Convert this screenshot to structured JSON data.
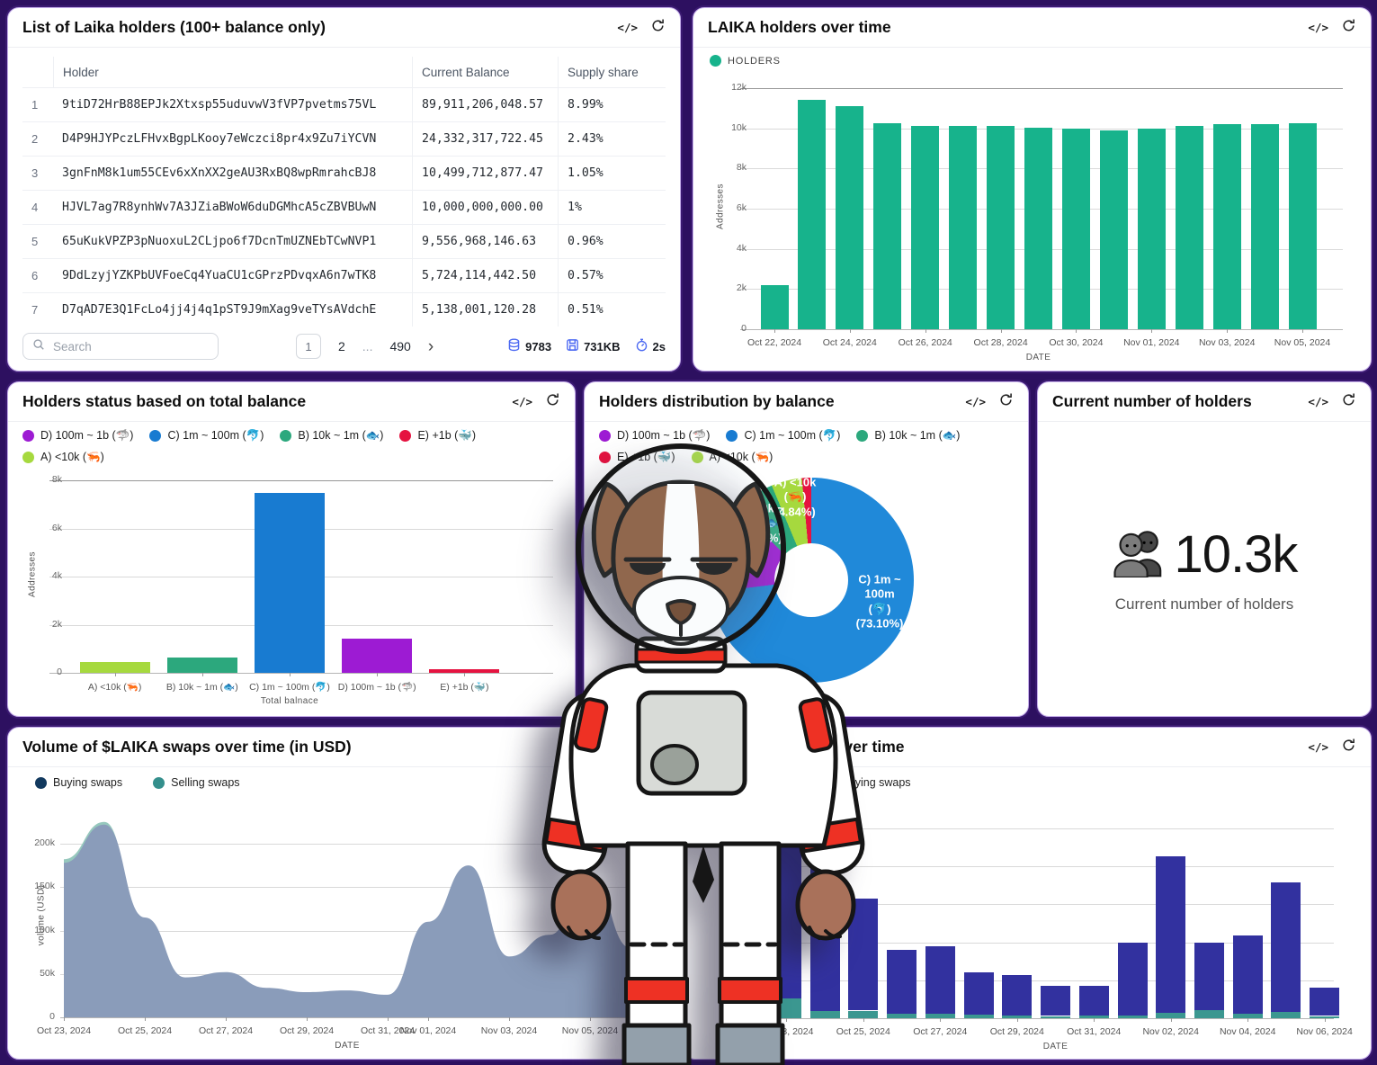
{
  "colors": {
    "background": "#2d1060",
    "panel": "#ffffff",
    "holders_green": "#17b38c",
    "blue": "#187bd1",
    "purple": "#9d1bd3",
    "red": "#e51340",
    "light_green": "#a6d93e",
    "teal_green": "#2ca87d",
    "buy_navy": "#12395e",
    "sell_teal": "#348f8c",
    "area_buy": "#8a9cba",
    "area_sell": "#96c8bd",
    "stack_indigo": "#32319f",
    "stack_teal": "#3b9790",
    "footer_icon_blue": "#4d6af2"
  },
  "icons": {
    "code": "</>"
  },
  "panels": {
    "holders_table": {
      "title": "List of Laika holders (100+ balance only)",
      "columns": [
        "",
        "Holder",
        "Current Balance",
        "Supply share"
      ],
      "rows": [
        [
          "1",
          "9tiD72HrB88EPJk2Xtxsp55uduvwV3fVP7pvetms75VL",
          "89,911,206,048.57",
          "8.99%"
        ],
        [
          "2",
          "D4P9HJYPczLFHvxBgpLKooy7eWczci8pr4x9Zu7iYCVN",
          "24,332,317,722.45",
          "2.43%"
        ],
        [
          "3",
          "3gnFnM8k1um55CEv6xXnXX2geAU3RxBQ8wpRmrahcBJ8",
          "10,499,712,877.47",
          "1.05%"
        ],
        [
          "4",
          "HJVL7ag7R8ynhWv7A3JZiaBWoW6duDGMhcA5cZBVBUwN",
          "10,000,000,000.00",
          "1%"
        ],
        [
          "5",
          "65uKukVPZP3pNuoxuL2CLjpo6f7DcnTmUZNEbTCwNVP1",
          "9,556,968,146.63",
          "0.96%"
        ],
        [
          "6",
          "9DdLzyjYZKPbUVFoeCq4YuaCU1cGPrzPDvqxA6n7wTK8",
          "5,724,114,442.50",
          "0.57%"
        ],
        [
          "7",
          "D7qAD7E3Q1FcLo4jj4j4q1pST9J9mXag9veTYsAVdchE",
          "5,138,001,120.28",
          "0.51%"
        ]
      ],
      "search_placeholder": "Search",
      "pagination": {
        "current": "1",
        "second": "2",
        "ellipsis": "...",
        "last": "490",
        "next": "›"
      },
      "stats": [
        {
          "icon": "database-icon",
          "value": "9783"
        },
        {
          "icon": "storage-icon",
          "value": "731KB"
        },
        {
          "icon": "timer-icon",
          "value": "2s"
        }
      ]
    },
    "holders_over_time": {
      "title": "LAIKA holders over time"
    },
    "holders_status": {
      "title": "Holders status based on total balance"
    },
    "holders_distribution": {
      "title": "Holders distribution by balance"
    },
    "holders_count": {
      "title": "Current number of holders",
      "value": "10.3k",
      "label": "Current number of holders"
    },
    "volume_swaps": {
      "title": "Volume of $LAIKA swaps over time (in USD)"
    },
    "swaps_count": {
      "title": "Number of swaps over time",
      "title_partially_occluded_by_mascot": true
    }
  },
  "chart_data": [
    {
      "id": "holders_over_time",
      "type": "bar",
      "title": "LAIKA holders over time",
      "legend": [
        {
          "label": "HOLDERS",
          "color": "#17b38c"
        }
      ],
      "color": "#17b38c",
      "categories": [
        "Oct 22, 2024",
        "Oct 23, 2024",
        "Oct 24, 2024",
        "Oct 25, 2024",
        "Oct 26, 2024",
        "Oct 27, 2024",
        "Oct 28, 2024",
        "Oct 29, 2024",
        "Oct 30, 2024",
        "Oct 31, 2024",
        "Nov 01, 2024",
        "Nov 02, 2024",
        "Nov 03, 2024",
        "Nov 04, 2024",
        "Nov 05, 2024"
      ],
      "values": [
        2200,
        11400,
        11100,
        10250,
        10100,
        10100,
        10100,
        10050,
        10000,
        9900,
        10000,
        10100,
        10200,
        10200,
        10250
      ],
      "xtick_indices": [
        0,
        2,
        4,
        6,
        8,
        10,
        12,
        14
      ],
      "ylim": 12000,
      "yticks": [
        [
          "0",
          0
        ],
        [
          "2k",
          2000
        ],
        [
          "4k",
          4000
        ],
        [
          "6k",
          6000
        ],
        [
          "8k",
          8000
        ],
        [
          "10k",
          10000
        ],
        [
          "12k",
          12000
        ]
      ],
      "xlabel": "DATE",
      "ylabel": "Addresses"
    },
    {
      "id": "holders_status",
      "type": "bar",
      "title": "Holders status based on total balance",
      "legend": [
        {
          "label": "D) 100m ~ 1b (🦈)",
          "color": "#9d1bd3"
        },
        {
          "label": "C) 1m ~ 100m (🐬)",
          "color": "#187bd1"
        },
        {
          "label": "B) 10k ~ 1m (🐟)",
          "color": "#2ca87d"
        },
        {
          "label": "E) +1b (🐳)",
          "color": "#e51340"
        },
        {
          "label": "A) <10k (🦐)",
          "color": "#a6d93e"
        }
      ],
      "categories": [
        "A) <10k (🦐)",
        "B) 10k ~ 1m (🐟)",
        "C) 1m ~ 100m (🐬)",
        "D) 100m ~ 1b (🦈)",
        "E) +1b (🐳)"
      ],
      "values": [
        450,
        650,
        7480,
        1420,
        150
      ],
      "bar_colors": [
        "#a6d93e",
        "#2ca87d",
        "#187bd1",
        "#9d1bd3",
        "#e51340"
      ],
      "xtick_indices": [
        0,
        1,
        2,
        3,
        4
      ],
      "ylim": 8000,
      "yticks": [
        [
          "0",
          0
        ],
        [
          "2k",
          2000
        ],
        [
          "4k",
          4000
        ],
        [
          "6k",
          6000
        ],
        [
          "8k",
          8000
        ]
      ],
      "xlabel": "Total balnace",
      "ylabel": "Addresses"
    },
    {
      "id": "holders_distribution",
      "type": "pie",
      "title": "Holders distribution by balance",
      "legend": [
        {
          "label": "D) 100m ~ 1b (🦈)",
          "color": "#9d1bd3"
        },
        {
          "label": "C) 1m ~ 100m (🐬)",
          "color": "#187bd1"
        },
        {
          "label": "B) 10k ~ 1m (🐟)",
          "color": "#2ca87d"
        },
        {
          "label": "E) +1b (🐳)",
          "color": "#e51340"
        },
        {
          "label": "A) <10k (🦐)",
          "color": "#a6d93e"
        }
      ],
      "slices": [
        {
          "name": "C) 1m ~ 100m (🐬)",
          "pct": 73.1,
          "color": "#2089d9",
          "label": "C) 1m ~\n100m\n(🐬)\n(73.10%)"
        },
        {
          "name": "D) 100m ~ 1b (🦈)",
          "pct": 14.16,
          "color": "#9d1bd3",
          "label": "D) 100m ~\n1b (🦈)\n(14.16%)"
        },
        {
          "name": "B) 10k ~ 1m (🐟)",
          "pct": 6.44,
          "color": "#2ca87d",
          "label": "B) 10k ~\n1m (🐟)\n(6.44%)"
        },
        {
          "name": "A) <10k (🦐)",
          "pct": 4.84,
          "color": "#a6d93e",
          "label": "A) <10k\n(🦐)\n(4.84%)"
        },
        {
          "name": "E) +1b (🐳)",
          "pct": 1.46,
          "pct_estimated": true,
          "color": "#e51340",
          "label": ""
        }
      ]
    },
    {
      "id": "volume_swaps",
      "type": "area",
      "title": "Volume of $LAIKA swaps over time (in USD)",
      "legend": [
        {
          "label": "Buying swaps",
          "color": "#12395e"
        },
        {
          "label": "Selling swaps",
          "color": "#348f8c"
        }
      ],
      "categories": [
        "Oct 23, 2024",
        "Oct 24, 2024",
        "Oct 25, 2024",
        "Oct 26, 2024",
        "Oct 27, 2024",
        "Oct 28, 2024",
        "Oct 29, 2024",
        "Oct 30, 2024",
        "Oct 31, 2024",
        "Nov 01, 2024",
        "Nov 02, 2024",
        "Nov 03, 2024",
        "Nov 04, 2024",
        "Nov 05, 2024",
        "Nov 06, 2024"
      ],
      "series": [
        {
          "name": "Selling swaps",
          "color": "#96c8bd",
          "values": [
            182000,
            225000,
            100000,
            40000,
            45000,
            30000,
            26000,
            28000,
            23000,
            95000,
            150000,
            60000,
            85000,
            140000,
            70000
          ]
        },
        {
          "name": "Buying swaps",
          "color": "#8a9cba",
          "values": [
            178000,
            222000,
            115000,
            46000,
            52000,
            34000,
            29000,
            31000,
            26000,
            110000,
            175000,
            70000,
            95000,
            165000,
            80000
          ]
        }
      ],
      "values_estimated": true,
      "xtick_indices": [
        0,
        2,
        4,
        6,
        8,
        9,
        11,
        13
      ],
      "ylim": 230000,
      "yticks": [
        [
          "0",
          0
        ],
        [
          "50k",
          50000
        ],
        [
          "100k",
          100000
        ],
        [
          "150k",
          150000
        ],
        [
          "200k",
          200000
        ]
      ],
      "xlabel": "DATE",
      "ylabel": "volume (USD)"
    },
    {
      "id": "swaps_count",
      "type": "stacked-bar",
      "title": "Number of swaps over time",
      "legend": [
        {
          "label": "Selling swaps",
          "color": "#3b9790"
        },
        {
          "label": "Buying swaps",
          "color": "#32319f"
        }
      ],
      "categories": [
        "Oct 23, 2024",
        "Oct 24, 2024",
        "Oct 25, 2024",
        "Oct 26, 2024",
        "Oct 27, 2024",
        "Oct 28, 2024",
        "Oct 29, 2024",
        "Oct 30, 2024",
        "Oct 31, 2024",
        "Nov 01, 2024",
        "Nov 02, 2024",
        "Nov 03, 2024",
        "Nov 04, 2024",
        "Nov 05, 2024",
        "Nov 06, 2024"
      ],
      "series": [
        {
          "name": "Selling swaps",
          "color": "#3b9790",
          "values": [
            260,
            90,
            100,
            60,
            60,
            50,
            40,
            30,
            40,
            40,
            70,
            110,
            60,
            80,
            30
          ]
        },
        {
          "name": "Buying swaps",
          "color": "#32319f",
          "values": [
            2020,
            1925,
            1480,
            845,
            885,
            560,
            535,
            395,
            385,
            960,
            2065,
            890,
            1025,
            1715,
            370
          ]
        }
      ],
      "values_estimated": true,
      "y_axis_labels_occluded": true,
      "xtick_indices": [
        0,
        2,
        4,
        6,
        8,
        10,
        12,
        14
      ],
      "ylim": 2500,
      "gridlines": 5,
      "xlabel": "DATE"
    }
  ],
  "mascot": {
    "description": "Laika dog astronaut cartoon mascot overlaying the dashboard"
  }
}
